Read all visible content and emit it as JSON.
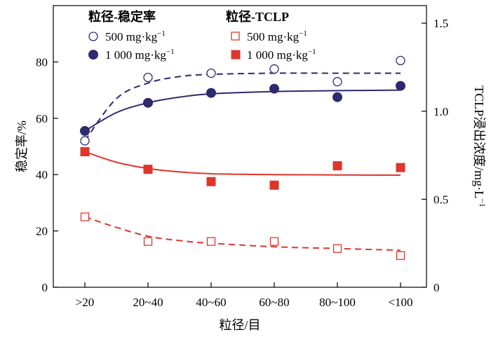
{
  "chart_data": {
    "type": "scatter",
    "categories": [
      ">20",
      "20~40",
      "40~60",
      "60~80",
      "80~100",
      "<100"
    ],
    "xlabel": "粒径/目",
    "ylabel_left": "稳定率/%",
    "ylabel_right": "TCLP浸出浓度/mg·L",
    "ylabel_right_sup": "−1",
    "ylim_left": [
      0,
      100
    ],
    "yticks_left": [
      0,
      20,
      40,
      60,
      80
    ],
    "ylim_right": [
      0,
      1.6
    ],
    "yticks_right": [
      "0",
      "0.5",
      "1.0",
      "1.5"
    ],
    "yticks_right_values": [
      0,
      0.5,
      1.0,
      1.5
    ],
    "legend": {
      "group1_title": "粒径-稳定率",
      "group2_title": "粒径-TCLP",
      "label_500": "500 mg·kg",
      "label_1000": "1 000 mg·kg",
      "sup": "−1"
    },
    "colors": {
      "navy": "#2e2a6e",
      "red": "#e0352b"
    },
    "series": [
      {
        "name": "500 mg·kg−1",
        "group": "粒径-稳定率",
        "axis": "left",
        "marker": "open-circle",
        "color": "#2e2a6e",
        "values": [
          52,
          74.5,
          76,
          77.5,
          73,
          80.5
        ],
        "fit": [
          [
            0,
            52
          ],
          [
            0.5,
            67
          ],
          [
            1,
            72.5
          ],
          [
            1.5,
            74.8
          ],
          [
            2,
            75.6
          ],
          [
            3,
            76
          ],
          [
            4,
            76
          ],
          [
            5,
            76
          ]
        ],
        "fit_style": "dashed"
      },
      {
        "name": "1 000 mg·kg−1",
        "group": "粒径-稳定率",
        "axis": "left",
        "marker": "filled-circle",
        "color": "#2e2a6e",
        "values": [
          55.5,
          65.5,
          69,
          70.5,
          67.5,
          71.5
        ],
        "fit": [
          [
            0,
            55.5
          ],
          [
            0.5,
            62
          ],
          [
            1,
            65.5
          ],
          [
            1.5,
            67.5
          ],
          [
            2,
            68.7
          ],
          [
            3,
            69.5
          ],
          [
            4,
            69.8
          ],
          [
            5,
            70
          ]
        ],
        "fit_style": "solid"
      },
      {
        "name": "500 mg·kg−1",
        "group": "粒径-TCLP",
        "axis": "right",
        "marker": "open-square",
        "color": "#e0352b",
        "values": [
          0.4,
          0.26,
          0.26,
          0.26,
          0.22,
          0.18
        ],
        "fit": [
          [
            0,
            0.4
          ],
          [
            0.5,
            0.34
          ],
          [
            1,
            0.29
          ],
          [
            1.5,
            0.265
          ],
          [
            2,
            0.25
          ],
          [
            3,
            0.23
          ],
          [
            4,
            0.22
          ],
          [
            5,
            0.21
          ]
        ],
        "fit_style": "dashed"
      },
      {
        "name": "1 000 mg·kg−1",
        "group": "粒径-TCLP",
        "axis": "right",
        "marker": "filled-square",
        "color": "#e0352b",
        "values": [
          0.77,
          0.67,
          0.6,
          0.58,
          0.69,
          0.68
        ],
        "fit": [
          [
            0,
            0.77
          ],
          [
            0.5,
            0.71
          ],
          [
            1,
            0.675
          ],
          [
            1.5,
            0.655
          ],
          [
            2,
            0.645
          ],
          [
            3,
            0.64
          ],
          [
            4,
            0.638
          ],
          [
            5,
            0.637
          ]
        ],
        "fit_style": "solid"
      }
    ]
  }
}
